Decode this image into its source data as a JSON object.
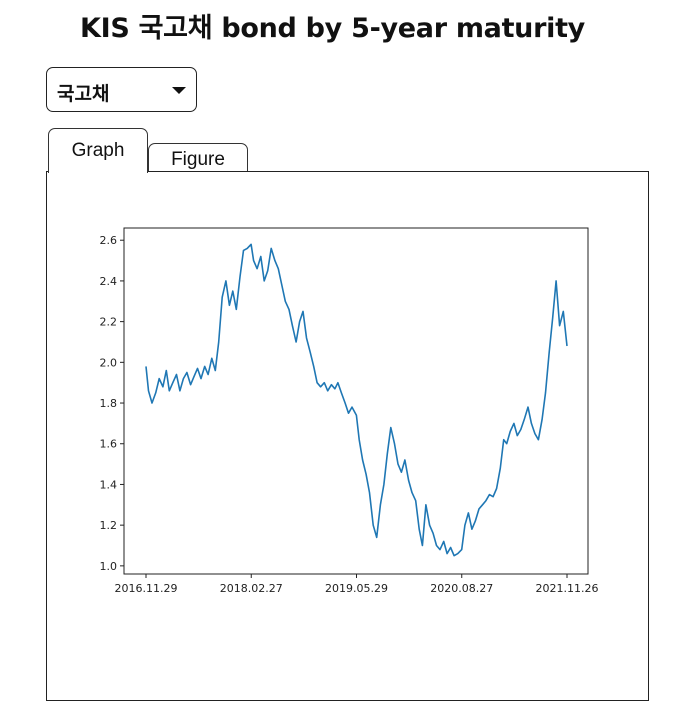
{
  "page": {
    "title": "KIS 국고채 bond by 5-year maturity"
  },
  "dropdown": {
    "selected": "국고채"
  },
  "tabs": [
    {
      "label": "Graph",
      "active": true
    },
    {
      "label": "Figure",
      "active": false
    }
  ],
  "chart_data": {
    "type": "line",
    "title": "",
    "xlabel": "",
    "ylabel": "",
    "x_tick_labels": [
      "2016.11.29",
      "2018.02.27",
      "2019.05.29",
      "2020.08.27",
      "2021.11.26"
    ],
    "y_ticks": [
      1.0,
      1.2,
      1.4,
      1.6,
      1.8,
      2.0,
      2.2,
      2.4,
      2.6
    ],
    "ylim": [
      0.96,
      2.66
    ],
    "grid": false,
    "legend": "none",
    "color": "#1f77b4",
    "series": [
      {
        "x": [
          "2016-11-29",
          "2016-12-10",
          "2016-12-25",
          "2017-01-10",
          "2017-01-25",
          "2017-02-10",
          "2017-02-25",
          "2017-03-10",
          "2017-03-25",
          "2017-04-10",
          "2017-04-25",
          "2017-05-10",
          "2017-05-25",
          "2017-06-10",
          "2017-06-25",
          "2017-07-10",
          "2017-07-25",
          "2017-08-10",
          "2017-08-25",
          "2017-09-10",
          "2017-09-25",
          "2017-10-10",
          "2017-10-25",
          "2017-11-10",
          "2017-11-25",
          "2017-12-10",
          "2017-12-25",
          "2018-01-10",
          "2018-01-25",
          "2018-02-10",
          "2018-02-27",
          "2018-03-10",
          "2018-03-25",
          "2018-04-10",
          "2018-04-25",
          "2018-05-10",
          "2018-05-25",
          "2018-06-10",
          "2018-06-25",
          "2018-07-10",
          "2018-07-25",
          "2018-08-10",
          "2018-08-25",
          "2018-09-10",
          "2018-09-25",
          "2018-10-10",
          "2018-10-25",
          "2018-11-10",
          "2018-11-25",
          "2018-12-10",
          "2018-12-25",
          "2019-01-10",
          "2019-01-25",
          "2019-02-10",
          "2019-02-25",
          "2019-03-10",
          "2019-03-25",
          "2019-04-10",
          "2019-04-25",
          "2019-05-10",
          "2019-05-29",
          "2019-06-10",
          "2019-06-25",
          "2019-07-10",
          "2019-07-25",
          "2019-08-10",
          "2019-08-25",
          "2019-09-10",
          "2019-09-25",
          "2019-10-10",
          "2019-10-25",
          "2019-11-10",
          "2019-11-25",
          "2019-12-10",
          "2019-12-25",
          "2020-01-10",
          "2020-01-25",
          "2020-02-10",
          "2020-02-25",
          "2020-03-10",
          "2020-03-25",
          "2020-04-10",
          "2020-04-25",
          "2020-05-10",
          "2020-05-25",
          "2020-06-10",
          "2020-06-25",
          "2020-07-10",
          "2020-07-25",
          "2020-08-10",
          "2020-08-27",
          "2020-09-10",
          "2020-09-25",
          "2020-10-10",
          "2020-10-25",
          "2020-11-10",
          "2020-11-25",
          "2020-12-10",
          "2020-12-25",
          "2021-01-10",
          "2021-01-25",
          "2021-02-10",
          "2021-02-25",
          "2021-03-10",
          "2021-03-25",
          "2021-04-10",
          "2021-04-25",
          "2021-05-10",
          "2021-05-25",
          "2021-06-10",
          "2021-06-25",
          "2021-07-10",
          "2021-07-25",
          "2021-08-10",
          "2021-08-25",
          "2021-09-10",
          "2021-09-25",
          "2021-10-10",
          "2021-10-25",
          "2021-11-10",
          "2021-11-26"
        ],
        "y": [
          1.98,
          1.86,
          1.8,
          1.85,
          1.92,
          1.88,
          1.96,
          1.86,
          1.9,
          1.94,
          1.86,
          1.92,
          1.95,
          1.89,
          1.93,
          1.97,
          1.92,
          1.98,
          1.94,
          2.02,
          1.96,
          2.1,
          2.32,
          2.4,
          2.28,
          2.35,
          2.26,
          2.42,
          2.55,
          2.56,
          2.58,
          2.5,
          2.46,
          2.52,
          2.4,
          2.45,
          2.56,
          2.5,
          2.46,
          2.38,
          2.3,
          2.26,
          2.18,
          2.1,
          2.2,
          2.25,
          2.12,
          2.05,
          1.98,
          1.9,
          1.88,
          1.9,
          1.86,
          1.89,
          1.87,
          1.9,
          1.85,
          1.8,
          1.75,
          1.78,
          1.74,
          1.62,
          1.52,
          1.45,
          1.36,
          1.2,
          1.14,
          1.3,
          1.4,
          1.55,
          1.68,
          1.6,
          1.5,
          1.46,
          1.52,
          1.42,
          1.36,
          1.32,
          1.18,
          1.1,
          1.3,
          1.2,
          1.16,
          1.1,
          1.08,
          1.12,
          1.06,
          1.09,
          1.05,
          1.06,
          1.08,
          1.2,
          1.26,
          1.18,
          1.22,
          1.28,
          1.3,
          1.32,
          1.35,
          1.34,
          1.38,
          1.48,
          1.62,
          1.6,
          1.66,
          1.7,
          1.64,
          1.67,
          1.72,
          1.78,
          1.7,
          1.65,
          1.62,
          1.72,
          1.85,
          2.05,
          2.22,
          2.4,
          2.18,
          2.25,
          2.08
        ]
      }
    ]
  }
}
